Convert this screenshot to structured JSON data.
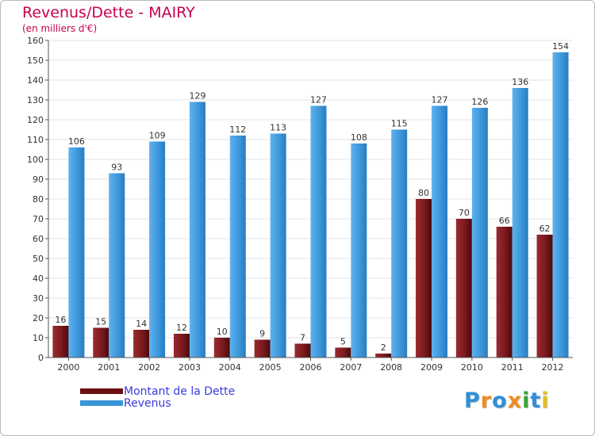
{
  "chart_data": {
    "type": "bar",
    "title": "Revenus/Dette - MAIRY",
    "subtitle": "(en milliers d'€)",
    "xlabel": "",
    "ylabel": "",
    "ylim": [
      0,
      160
    ],
    "yticks": [
      0,
      10,
      20,
      30,
      40,
      50,
      60,
      70,
      80,
      90,
      100,
      110,
      120,
      130,
      140,
      150,
      160
    ],
    "grid": true,
    "categories": [
      "2000",
      "2001",
      "2002",
      "2003",
      "2004",
      "2005",
      "2006",
      "2007",
      "2008",
      "2009",
      "2010",
      "2011",
      "2012"
    ],
    "series": [
      {
        "name": "Montant de la Dette",
        "color": "#7a1a1e",
        "values": [
          16,
          15,
          14,
          12,
          10,
          9,
          7,
          5,
          2,
          80,
          70,
          66,
          62
        ]
      },
      {
        "name": "Revenus",
        "color": "#3a95d8",
        "values": [
          106,
          93,
          109,
          129,
          112,
          113,
          127,
          108,
          115,
          127,
          126,
          136,
          154
        ]
      }
    ],
    "legend_position": "bottom-left"
  },
  "logo": {
    "text": "Proxiti",
    "letters": [
      {
        "ch": "P",
        "color": "#2f8fd8"
      },
      {
        "ch": "r",
        "color": "#f08a1c"
      },
      {
        "ch": "o",
        "color": "#2f8fd8"
      },
      {
        "ch": "x",
        "color": "#f08a1c"
      },
      {
        "ch": "i",
        "color": "#3aa33a"
      },
      {
        "ch": "t",
        "color": "#2f8fd8"
      },
      {
        "ch": "i",
        "color": "#e0c020"
      }
    ]
  }
}
